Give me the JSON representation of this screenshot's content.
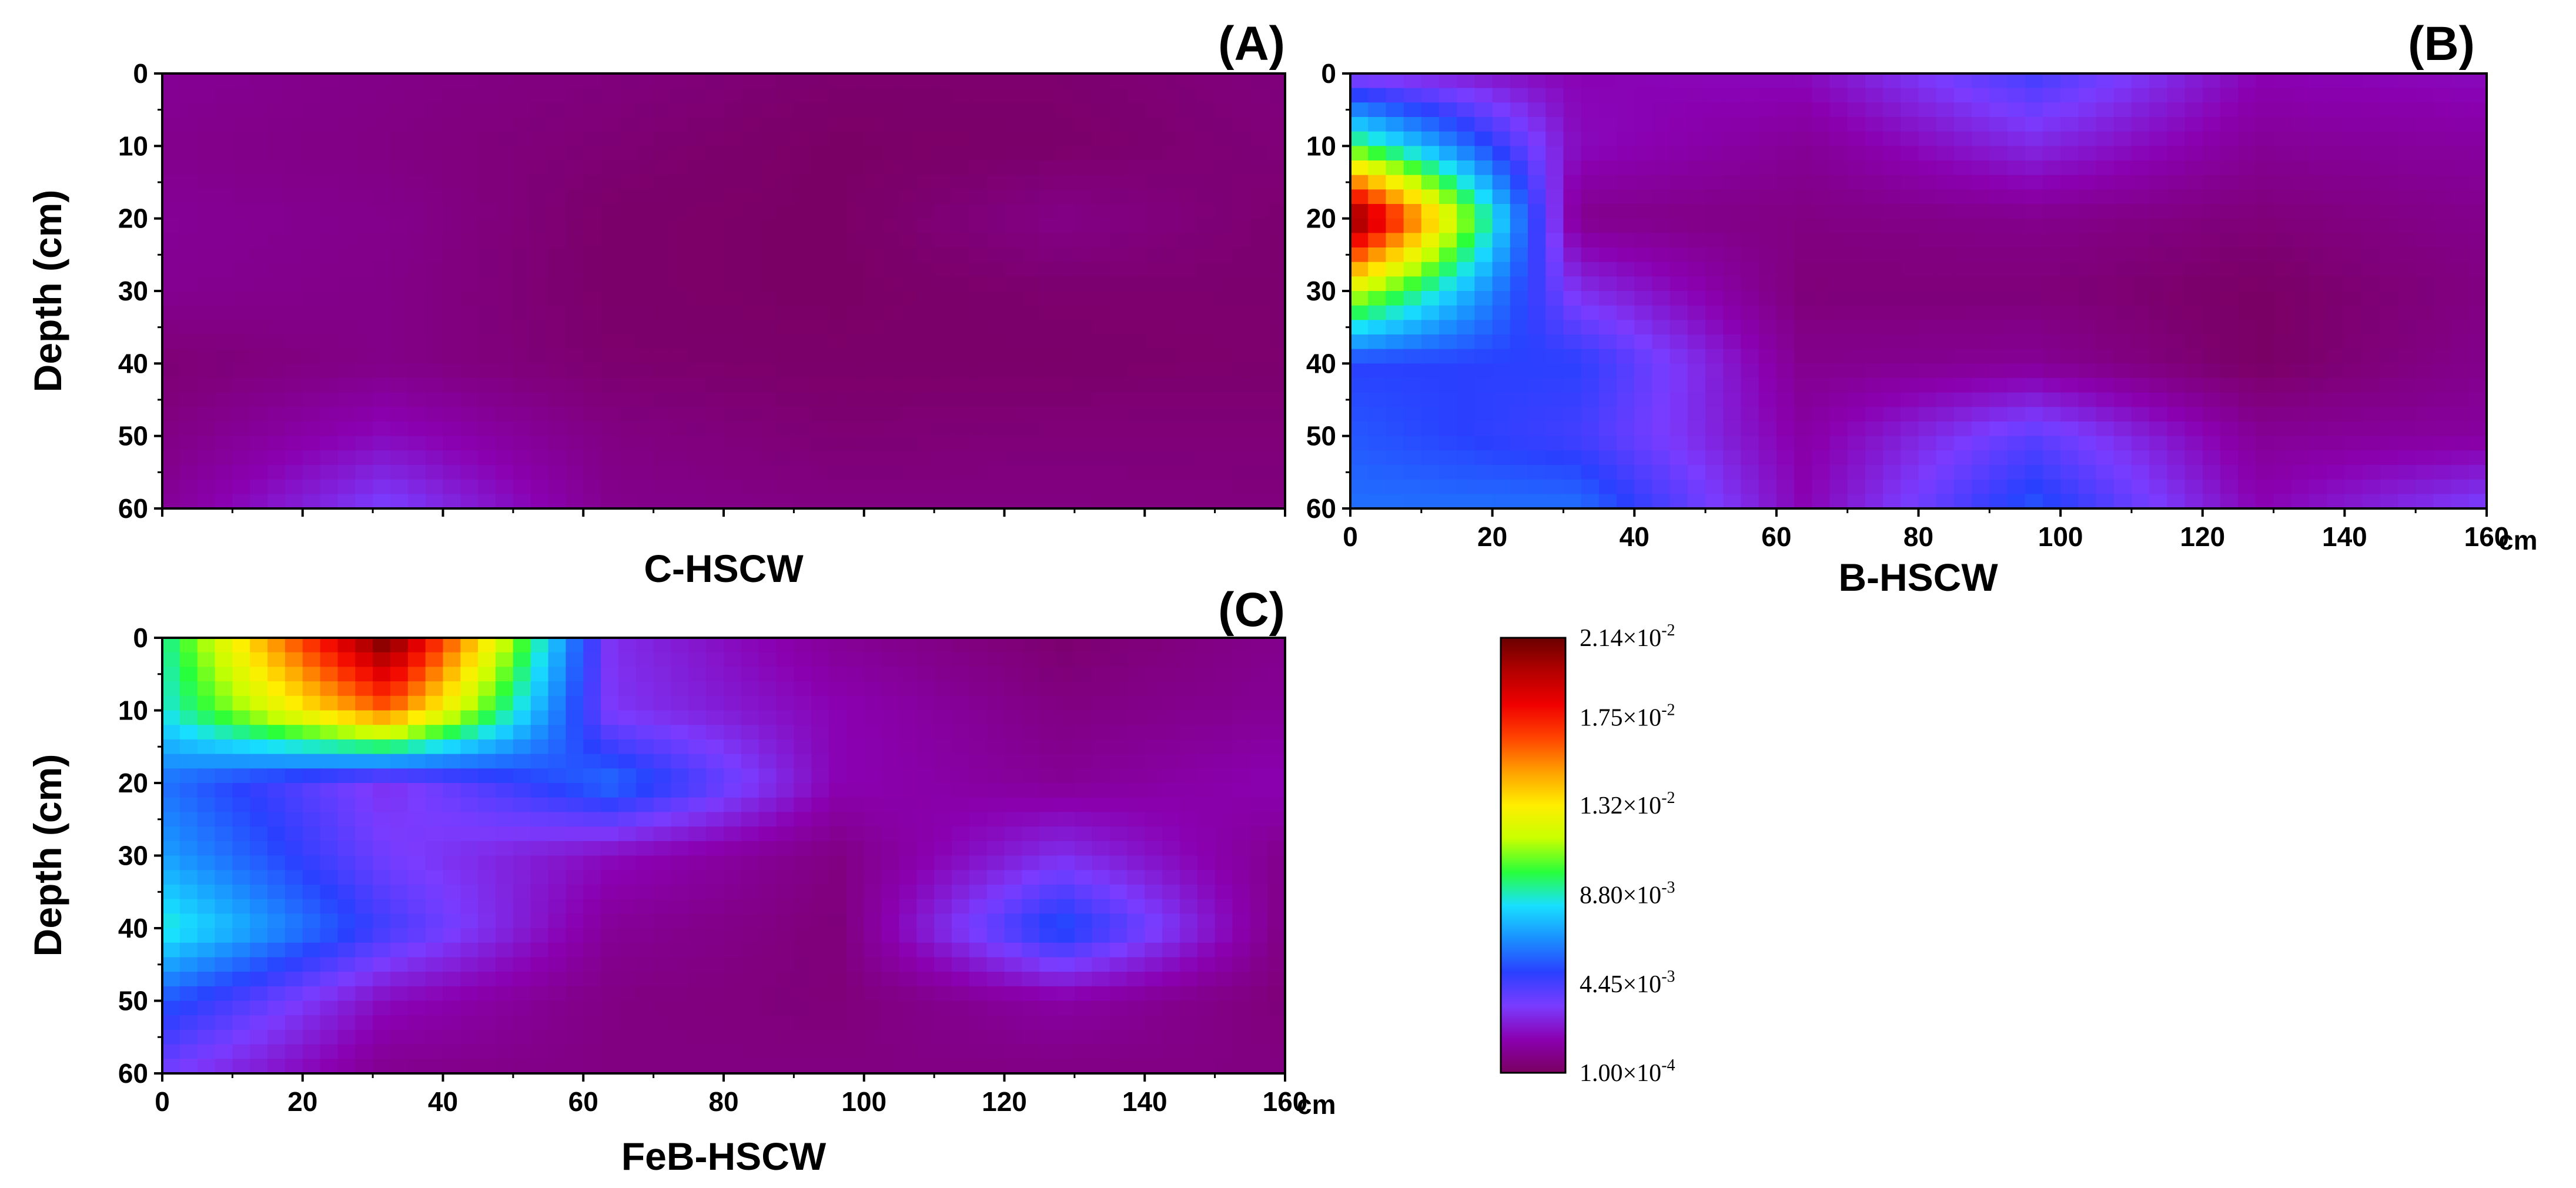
{
  "figure": {
    "colorbar": {
      "colors": [
        "#7a0060",
        "#8a00b0",
        "#7a3cff",
        "#2a40ff",
        "#1a90ff",
        "#18e0ff",
        "#28ff3a",
        "#c8ff00",
        "#ffee00",
        "#ffa000",
        "#ff4400",
        "#f00000",
        "#b40000",
        "#6a0000"
      ],
      "ticks": [
        {
          "value": 0.0214,
          "mantissa": "2.14",
          "exponent": "-2"
        },
        {
          "value": 0.0175,
          "mantissa": "1.75",
          "exponent": "-2"
        },
        {
          "value": 0.0132,
          "mantissa": "1.32",
          "exponent": "-2"
        },
        {
          "value": 0.0088,
          "mantissa": "8.80",
          "exponent": "-3"
        },
        {
          "value": 0.00445,
          "mantissa": "4.45",
          "exponent": "-3"
        },
        {
          "value": 0.0001,
          "mantissa": "1.00",
          "exponent": "-4"
        }
      ],
      "times_symbol": "×10"
    },
    "x_unit": "cm"
  },
  "chart_data": [
    {
      "type": "heatmap",
      "panel": "(A)",
      "title": "C-HSCW",
      "ylabel": "Depth (cm)",
      "xlabel": "",
      "xlim": [
        0,
        160
      ],
      "ylim": [
        0,
        60
      ],
      "x": [
        0,
        32,
        64,
        96,
        128,
        160
      ],
      "y": [
        0,
        10,
        20,
        30,
        40,
        50,
        60
      ],
      "yticks": [
        "0",
        "10",
        "20",
        "30",
        "40",
        "50",
        "60"
      ],
      "xticks": [],
      "values": [
        [
          0.0012,
          0.0009,
          0.0007,
          0.0004,
          0.0004,
          0.0007
        ],
        [
          0.001,
          0.0008,
          0.0005,
          0.0002,
          0.0003,
          0.0006
        ],
        [
          0.0012,
          0.001,
          0.0003,
          0.0002,
          0.0009,
          0.0004
        ],
        [
          0.0011,
          0.0009,
          0.0003,
          0.0002,
          0.0004,
          0.0004
        ],
        [
          0.0005,
          0.0009,
          0.0004,
          0.0003,
          0.0003,
          0.0004
        ],
        [
          0.0008,
          0.002,
          0.0008,
          0.0005,
          0.0006,
          0.0006
        ],
        [
          0.0012,
          0.0035,
          0.001,
          0.0008,
          0.0008,
          0.0007
        ]
      ]
    },
    {
      "type": "heatmap",
      "panel": "(B)",
      "title": "B-HSCW",
      "ylabel": "",
      "xlabel": "",
      "xlim": [
        0,
        160
      ],
      "ylim": [
        0,
        60
      ],
      "x": [
        0,
        32,
        64,
        96,
        128,
        160
      ],
      "y": [
        0,
        10,
        20,
        30,
        40,
        50,
        60
      ],
      "yticks": [
        "0",
        "10",
        "20",
        "30",
        "40",
        "50",
        "60"
      ],
      "xticks": [
        "0",
        "20",
        "40",
        "60",
        "80",
        "100",
        "120",
        "140",
        "160"
      ],
      "values": [
        [
          0.003,
          0.0018,
          0.002,
          0.0045,
          0.0018,
          0.002
        ],
        [
          0.01,
          0.002,
          0.0012,
          0.0028,
          0.0012,
          0.0014
        ],
        [
          0.0214,
          0.001,
          0.0008,
          0.001,
          0.0006,
          0.001
        ],
        [
          0.012,
          0.003,
          0.0006,
          0.0006,
          0.0002,
          0.0008
        ],
        [
          0.005,
          0.005,
          0.001,
          0.0012,
          0.0002,
          0.001
        ],
        [
          0.0055,
          0.0045,
          0.0015,
          0.004,
          0.0012,
          0.0014
        ],
        [
          0.006,
          0.006,
          0.0018,
          0.0055,
          0.0018,
          0.0035
        ]
      ]
    },
    {
      "type": "heatmap",
      "panel": "(C)",
      "title": "FeB-HSCW",
      "ylabel": "Depth (cm)",
      "xlabel": "",
      "xlim": [
        0,
        160
      ],
      "ylim": [
        0,
        60
      ],
      "x": [
        0,
        32,
        64,
        96,
        128,
        160
      ],
      "y": [
        0,
        10,
        20,
        30,
        40,
        50,
        60
      ],
      "yticks": [
        "0",
        "10",
        "20",
        "30",
        "40",
        "50",
        "60"
      ],
      "xticks": [
        "0",
        "20",
        "40",
        "60",
        "80",
        "100",
        "120",
        "140",
        "160"
      ],
      "values": [
        [
          0.009,
          0.0214,
          0.003,
          0.0012,
          0.0004,
          0.001
        ],
        [
          0.0085,
          0.016,
          0.0032,
          0.0018,
          0.0008,
          0.0012
        ],
        [
          0.006,
          0.003,
          0.006,
          0.0018,
          0.0012,
          0.0018
        ],
        [
          0.007,
          0.0035,
          0.002,
          0.0008,
          0.003,
          0.001
        ],
        [
          0.0088,
          0.0045,
          0.0012,
          0.0006,
          0.0055,
          0.0008
        ],
        [
          0.0055,
          0.002,
          0.0008,
          0.0006,
          0.0015,
          0.0006
        ],
        [
          0.0035,
          0.001,
          0.0008,
          0.0008,
          0.0008,
          0.0008
        ]
      ]
    }
  ]
}
